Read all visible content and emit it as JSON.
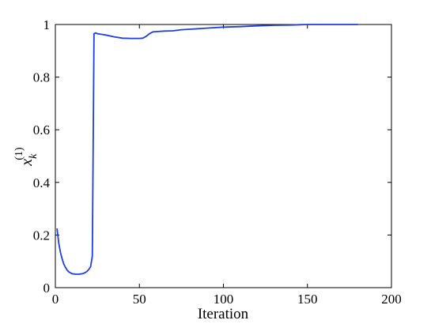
{
  "chart_data": {
    "type": "line",
    "xlabel": "Iteration",
    "ylabel": {
      "base": "x",
      "sub": "k",
      "sup": "(1)"
    },
    "x": [
      1,
      2,
      3,
      4,
      5,
      6,
      7,
      8,
      9,
      10,
      11,
      12,
      13,
      14,
      15,
      16,
      17,
      18,
      19,
      20,
      21,
      22,
      23,
      24,
      25,
      28,
      30,
      35,
      40,
      45,
      50,
      52,
      54,
      56,
      58,
      60,
      65,
      70,
      75,
      80,
      90,
      100,
      110,
      120,
      130,
      140,
      150,
      160,
      170,
      180
    ],
    "series": [
      {
        "color": "#1f3fe0",
        "values": [
          0.225,
          0.17,
          0.135,
          0.11,
          0.09,
          0.077,
          0.067,
          0.06,
          0.056,
          0.053,
          0.052,
          0.051,
          0.051,
          0.051,
          0.052,
          0.053,
          0.055,
          0.058,
          0.063,
          0.07,
          0.08,
          0.12,
          0.965,
          0.968,
          0.965,
          0.962,
          0.96,
          0.953,
          0.948,
          0.947,
          0.947,
          0.948,
          0.955,
          0.965,
          0.972,
          0.973,
          0.975,
          0.976,
          0.98,
          0.982,
          0.986,
          0.99,
          0.992,
          0.995,
          0.997,
          0.998,
          1,
          1,
          1,
          1
        ]
      }
    ],
    "xlim": [
      0,
      200
    ],
    "xticks": [
      0,
      50,
      100,
      150,
      200
    ],
    "ylim": [
      0,
      1
    ],
    "yticks": [
      0,
      0.2,
      0.4,
      0.6,
      0.8,
      1
    ]
  }
}
